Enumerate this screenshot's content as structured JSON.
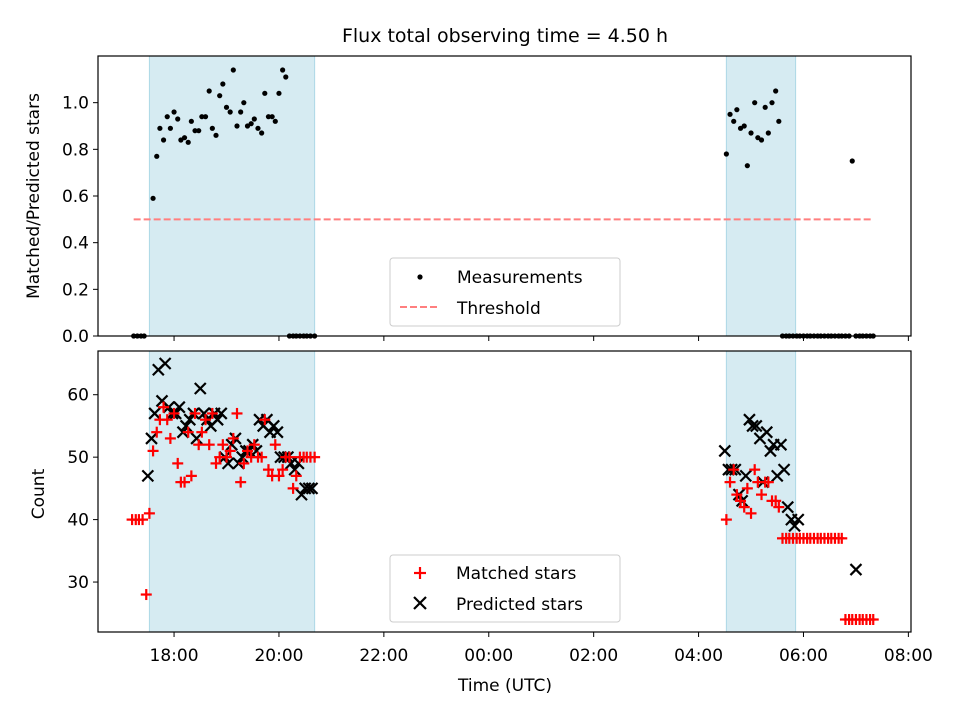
{
  "chart_data": [
    {
      "type": "scatter",
      "title": "Flux total observing time = 4.50 h",
      "xlabel": "",
      "ylabel": "Matched/Predicted stars",
      "ylim": [
        0,
        1.2
      ],
      "yticks": [
        0.0,
        0.2,
        0.4,
        0.6,
        0.8,
        1.0
      ],
      "ytick_labels": [
        "0.0",
        "0.2",
        "0.4",
        "0.6",
        "0.8",
        "1.0"
      ],
      "shaded_spans": [
        [
          17.53,
          20.68
        ],
        [
          28.53,
          29.85
        ]
      ],
      "legend": {
        "placement": "lower center",
        "entries": [
          "Measurements",
          "Threshold"
        ]
      },
      "series": [
        {
          "name": "Measurements",
          "marker": "dot",
          "color": "#000000",
          "x": [
            17.23,
            17.3,
            17.37,
            17.43,
            17.6,
            17.67,
            17.73,
            17.8,
            17.87,
            17.93,
            18.0,
            18.07,
            18.13,
            18.2,
            18.27,
            18.33,
            18.4,
            18.47,
            18.53,
            18.6,
            18.67,
            18.73,
            18.8,
            18.87,
            18.93,
            19.0,
            19.07,
            19.13,
            19.2,
            19.27,
            19.33,
            19.4,
            19.47,
            19.53,
            19.6,
            19.67,
            19.73,
            19.8,
            19.87,
            19.93,
            20.0,
            20.07,
            20.13,
            20.2,
            20.27,
            20.33,
            20.4,
            20.47,
            20.53,
            20.6,
            20.68,
            28.53,
            28.6,
            28.67,
            28.73,
            28.8,
            28.87,
            28.93,
            29.0,
            29.07,
            29.13,
            29.2,
            29.27,
            29.33,
            29.4,
            29.47,
            29.53,
            29.6,
            29.67,
            29.73,
            29.8,
            29.87,
            29.93,
            30.0,
            30.07,
            30.13,
            30.2,
            30.27,
            30.33,
            30.4,
            30.47,
            30.53,
            30.6,
            30.67,
            30.73,
            30.8,
            30.87,
            30.93,
            31.0,
            31.07,
            31.13,
            31.2,
            31.27,
            31.33
          ],
          "y": [
            0.0,
            0.0,
            0.0,
            0.0,
            0.59,
            0.77,
            0.89,
            0.84,
            0.94,
            0.89,
            0.96,
            0.93,
            0.84,
            0.85,
            0.83,
            0.92,
            0.88,
            0.88,
            0.94,
            0.94,
            1.05,
            0.89,
            0.86,
            1.03,
            1.08,
            0.98,
            0.96,
            1.14,
            0.9,
            0.96,
            1.0,
            0.9,
            0.91,
            0.93,
            0.89,
            0.87,
            1.04,
            0.94,
            0.94,
            0.92,
            1.04,
            1.14,
            1.11,
            0.0,
            0.0,
            0.0,
            0.0,
            0.0,
            0.0,
            0.0,
            0.0,
            0.78,
            0.95,
            0.92,
            0.97,
            0.89,
            0.9,
            0.73,
            0.87,
            1.0,
            0.85,
            0.84,
            0.98,
            0.87,
            1.0,
            1.05,
            0.92,
            0.0,
            0.0,
            0.0,
            0.0,
            0.0,
            0.0,
            0.0,
            0.0,
            0.0,
            0.0,
            0.0,
            0.0,
            0.0,
            0.0,
            0.0,
            0.0,
            0.0,
            0.0,
            0.0,
            0.0,
            0.75,
            0.0,
            0.0,
            0.0,
            0.0,
            0.0,
            0.0
          ],
          "visible_count": 77
        },
        {
          "name": "Threshold",
          "style": "dashed",
          "color": "#ff7f7f",
          "x": [
            17.23,
            31.33
          ],
          "y": [
            0.5,
            0.5
          ]
        }
      ]
    },
    {
      "type": "scatter",
      "title": "",
      "xlabel": "Time (UTC)",
      "ylabel": "Count",
      "xlim": [
        16.55,
        32.05
      ],
      "ylim": [
        22,
        67
      ],
      "xticks": [
        18,
        20,
        22,
        24,
        26,
        28,
        30,
        32
      ],
      "xtick_labels": [
        "18:00",
        "20:00",
        "22:00",
        "00:00",
        "02:00",
        "04:00",
        "06:00",
        "08:00"
      ],
      "yticks": [
        30,
        40,
        50,
        60
      ],
      "ytick_labels": [
        "30",
        "40",
        "50",
        "60"
      ],
      "shaded_spans": [
        [
          17.53,
          20.68
        ],
        [
          28.53,
          29.85
        ]
      ],
      "legend": {
        "placement": "lower center",
        "entries": [
          "Matched stars",
          "Predicted stars"
        ]
      },
      "series": [
        {
          "name": "Matched stars",
          "marker": "plus",
          "color": "#ff0000",
          "x": [
            17.2,
            17.27,
            17.33,
            17.4,
            17.47,
            17.53,
            17.6,
            17.67,
            17.73,
            17.8,
            17.87,
            17.93,
            18.0,
            18.07,
            18.13,
            18.2,
            18.27,
            18.33,
            18.4,
            18.47,
            18.53,
            18.6,
            18.67,
            18.73,
            18.8,
            18.87,
            18.93,
            19.0,
            19.07,
            19.13,
            19.2,
            19.27,
            19.33,
            19.4,
            19.47,
            19.53,
            19.6,
            19.67,
            19.73,
            19.8,
            19.87,
            19.93,
            20.0,
            20.07,
            20.13,
            20.2,
            20.27,
            20.33,
            20.4,
            20.47,
            20.53,
            20.6,
            20.68,
            28.53,
            28.6,
            28.67,
            28.73,
            28.8,
            28.87,
            28.93,
            29.0,
            29.07,
            29.13,
            29.2,
            29.27,
            29.33,
            29.4,
            29.47,
            29.53,
            29.6,
            29.67,
            29.73,
            29.8,
            29.87,
            29.93,
            30.0,
            30.07,
            30.13,
            30.2,
            30.27,
            30.33,
            30.4,
            30.47,
            30.53,
            30.6,
            30.67,
            30.73,
            30.8,
            30.87,
            30.93,
            31.0,
            31.07,
            31.13,
            31.2,
            31.27,
            31.33
          ],
          "y": [
            40,
            40,
            40,
            40,
            28,
            41,
            51,
            54,
            56,
            58,
            56,
            53,
            57,
            49,
            46,
            46,
            54,
            47,
            57,
            52,
            54,
            56,
            52,
            57,
            49,
            50,
            52,
            50,
            51,
            53,
            57,
            46,
            49,
            51,
            50,
            52,
            50,
            50,
            56,
            48,
            47,
            52,
            47,
            48,
            50,
            50,
            45,
            47,
            50,
            50,
            50,
            50,
            50,
            40,
            46,
            48,
            44,
            43,
            42,
            45,
            41,
            48,
            46,
            44,
            46,
            46,
            43,
            43,
            42,
            37,
            37,
            37,
            37,
            37,
            37,
            37,
            37,
            37,
            37,
            37,
            37,
            37,
            37,
            37,
            37,
            37,
            37,
            24,
            24,
            24,
            24,
            24,
            24,
            24,
            24,
            24
          ],
          "visible_count": 94
        },
        {
          "name": "Predicted stars",
          "marker": "x",
          "color": "#000000",
          "x": [
            17.5,
            17.57,
            17.63,
            17.7,
            17.77,
            17.83,
            17.9,
            17.97,
            18.03,
            18.1,
            18.17,
            18.23,
            18.3,
            18.37,
            18.43,
            18.5,
            18.57,
            18.63,
            18.7,
            18.77,
            18.83,
            18.9,
            18.97,
            19.03,
            19.1,
            19.17,
            19.23,
            19.3,
            19.37,
            19.43,
            19.5,
            19.57,
            19.63,
            19.7,
            19.77,
            19.83,
            19.9,
            19.97,
            20.03,
            20.1,
            20.17,
            20.23,
            20.3,
            20.37,
            20.43,
            20.5,
            20.57,
            20.63,
            28.5,
            28.57,
            28.63,
            28.7,
            28.77,
            28.83,
            28.9,
            28.97,
            29.03,
            29.1,
            29.17,
            29.23,
            29.3,
            29.37,
            29.43,
            29.5,
            29.57,
            29.63,
            29.7,
            29.77,
            29.83,
            29.9,
            31.0
          ],
          "y": [
            47,
            53,
            57,
            64,
            59,
            65,
            58,
            57,
            57,
            58,
            54,
            55,
            56,
            57,
            53,
            61,
            57,
            56,
            55,
            57,
            56,
            57,
            50,
            49,
            52,
            53,
            49,
            50,
            51,
            51,
            52,
            51,
            56,
            55,
            56,
            54,
            55,
            54,
            50,
            50,
            50,
            49,
            48,
            49,
            44,
            45,
            45,
            45,
            51,
            48,
            48,
            48,
            44,
            43,
            47,
            56,
            55,
            55,
            53,
            46,
            54,
            51,
            52,
            47,
            52,
            48,
            42,
            40,
            39,
            40,
            32
          ],
          "visible_count": 66
        }
      ]
    }
  ]
}
